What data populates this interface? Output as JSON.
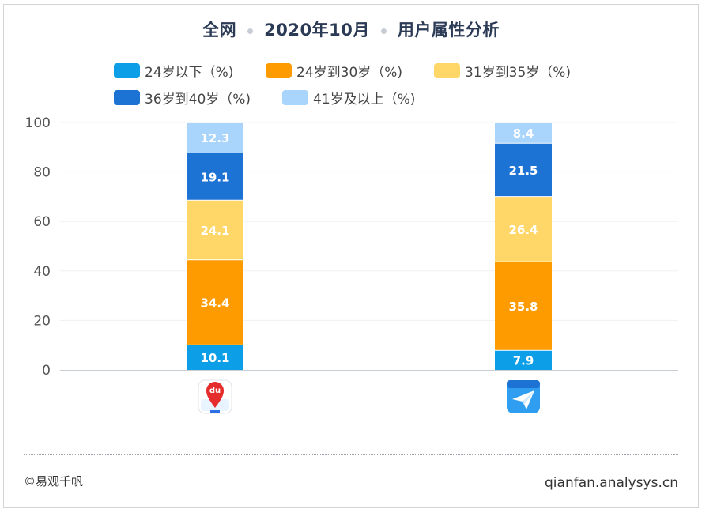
{
  "title": {
    "parts": [
      "全网",
      "2020年10月",
      "用户属性分析"
    ]
  },
  "legend": [
    {
      "label": "24岁以下（%)",
      "color": "#0c9ee6"
    },
    {
      "label": "24岁到30岁（%)",
      "color": "#fe9b00"
    },
    {
      "label": "31岁到35岁（%)",
      "color": "#ffd769"
    },
    {
      "label": "36岁到40岁（%)",
      "color": "#1c73d3"
    },
    {
      "label": "41岁及以上（%)",
      "color": "#a9d4fb"
    }
  ],
  "chart_data": {
    "type": "bar",
    "stacked": true,
    "categories": [
      "百度地图",
      "高德地图"
    ],
    "ylim": [
      0,
      100
    ],
    "yticks": [
      0,
      20,
      40,
      60,
      80,
      100
    ],
    "grid": true,
    "legend_position": "top",
    "series": [
      {
        "name": "24岁以下（%)",
        "color": "#0c9ee6",
        "values": [
          10.1,
          7.9
        ]
      },
      {
        "name": "24岁到30岁（%)",
        "color": "#fe9b00",
        "values": [
          34.4,
          35.8
        ]
      },
      {
        "name": "31岁到35岁（%)",
        "color": "#ffd769",
        "values": [
          24.1,
          26.4
        ]
      },
      {
        "name": "36岁到40岁（%)",
        "color": "#1c73d3",
        "values": [
          19.1,
          21.5
        ]
      },
      {
        "name": "41岁及以上（%)",
        "color": "#a9d4fb",
        "values": [
          12.3,
          8.4
        ]
      }
    ],
    "category_icons": [
      "baidu-map-app-icon",
      "amap-app-icon"
    ]
  },
  "footer": {
    "left": "©易观千帆",
    "right": "qianfan.analysys.cn"
  }
}
